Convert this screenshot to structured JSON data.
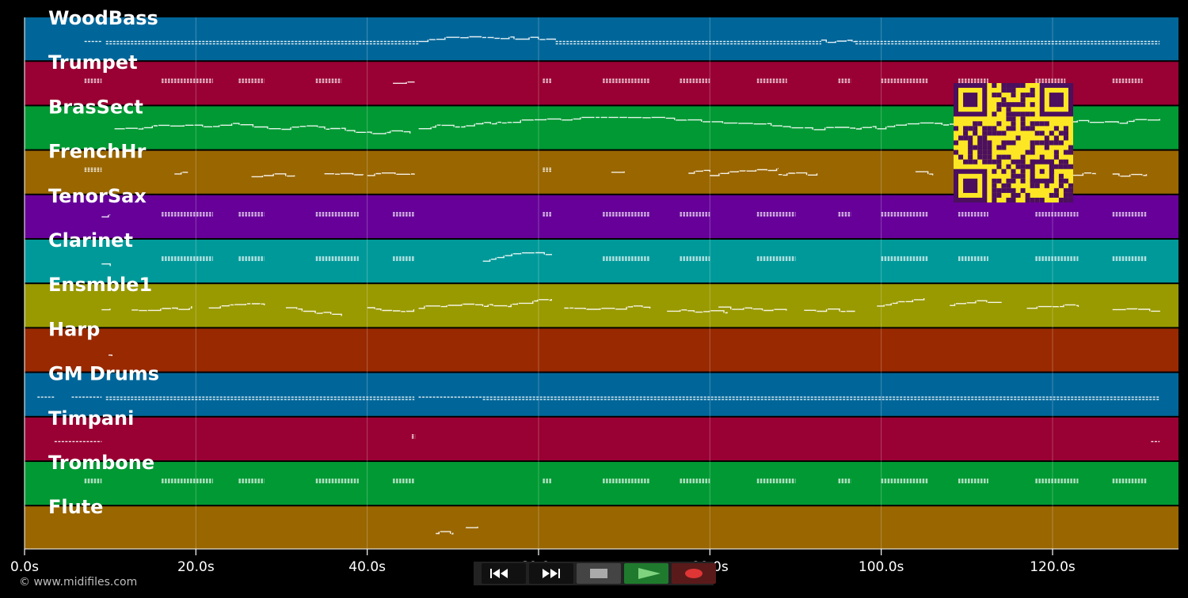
{
  "tracks": [
    {
      "name": "WoodBass",
      "color": "#006699",
      "notes": [
        [
          7,
          9,
          "m"
        ],
        [
          9.5,
          46,
          "d"
        ],
        [
          46,
          62,
          "w"
        ],
        [
          62,
          93,
          "d"
        ],
        [
          93,
          97,
          "w"
        ],
        [
          97,
          132.5,
          "d"
        ]
      ]
    },
    {
      "name": "Trumpet",
      "color": "#990033",
      "notes": [
        [
          7,
          9,
          "c"
        ],
        [
          16,
          22,
          "c"
        ],
        [
          25,
          28,
          "c"
        ],
        [
          34,
          37,
          "c"
        ],
        [
          43,
          45.5,
          "w"
        ],
        [
          60.5,
          61.5,
          "c"
        ],
        [
          67.5,
          73,
          "c"
        ],
        [
          76.5,
          80,
          "c"
        ],
        [
          85.5,
          89,
          "c"
        ],
        [
          95,
          96.5,
          "c"
        ],
        [
          100,
          105.5,
          "c"
        ],
        [
          109,
          112.5,
          "c"
        ],
        [
          118,
          121.5,
          "c"
        ],
        [
          127,
          130.5,
          "c"
        ]
      ]
    },
    {
      "name": "BrasSect",
      "color": "#009933",
      "notes": [
        [
          10.5,
          45,
          "w"
        ],
        [
          46,
          132.5,
          "w"
        ]
      ]
    },
    {
      "name": "FrenchHr",
      "color": "#996600",
      "notes": [
        [
          7,
          9,
          "c"
        ],
        [
          17.5,
          19,
          "w"
        ],
        [
          26.5,
          31.5,
          "w"
        ],
        [
          35,
          39.5,
          "w"
        ],
        [
          40,
          45.5,
          "w"
        ],
        [
          60.5,
          61.5,
          "c"
        ],
        [
          68.5,
          70,
          "w"
        ],
        [
          77.5,
          80,
          "w"
        ],
        [
          80,
          88,
          "w"
        ],
        [
          88,
          92.5,
          "w"
        ],
        [
          104,
          106,
          "w"
        ],
        [
          122,
          125,
          "w"
        ],
        [
          127,
          131,
          "w"
        ]
      ]
    },
    {
      "name": "TenorSax",
      "color": "#660099",
      "notes": [
        [
          9,
          10,
          "w"
        ],
        [
          16,
          22,
          "c"
        ],
        [
          25,
          28,
          "c"
        ],
        [
          34,
          39,
          "c"
        ],
        [
          43,
          45.5,
          "c"
        ],
        [
          60.5,
          61.5,
          "c"
        ],
        [
          67.5,
          73,
          "c"
        ],
        [
          76.5,
          80,
          "c"
        ],
        [
          85.5,
          90,
          "c"
        ],
        [
          95,
          96.5,
          "c"
        ],
        [
          100,
          105.5,
          "c"
        ],
        [
          109,
          112.5,
          "c"
        ],
        [
          118,
          123,
          "c"
        ],
        [
          127,
          131,
          "c"
        ]
      ]
    },
    {
      "name": "Clarinet",
      "color": "#009999",
      "notes": [
        [
          9,
          10,
          "w"
        ],
        [
          16,
          22,
          "c"
        ],
        [
          25,
          28,
          "c"
        ],
        [
          34,
          39,
          "c"
        ],
        [
          43,
          45.5,
          "c"
        ],
        [
          53.5,
          61.5,
          "w"
        ],
        [
          67.5,
          73,
          "c"
        ],
        [
          76.5,
          80,
          "c"
        ],
        [
          85.5,
          90,
          "c"
        ],
        [
          100,
          105.5,
          "c"
        ],
        [
          109,
          112.5,
          "c"
        ],
        [
          118,
          123,
          "c"
        ],
        [
          127,
          131,
          "c"
        ]
      ]
    },
    {
      "name": "Ensmble1",
      "color": "#999900",
      "notes": [
        [
          9,
          10,
          "w"
        ],
        [
          12.5,
          19.5,
          "w"
        ],
        [
          21.5,
          28,
          "w"
        ],
        [
          30.5,
          37,
          "w"
        ],
        [
          40,
          45.5,
          "w"
        ],
        [
          46,
          61.5,
          "w"
        ],
        [
          63,
          73,
          "w"
        ],
        [
          75,
          82,
          "w"
        ],
        [
          81,
          89,
          "w"
        ],
        [
          91,
          97,
          "w"
        ],
        [
          99.5,
          105,
          "w"
        ],
        [
          108,
          114,
          "w"
        ],
        [
          117,
          123,
          "w"
        ],
        [
          127,
          132.5,
          "w"
        ]
      ]
    },
    {
      "name": "Harp",
      "color": "#992900",
      "notes": [
        [
          9.8,
          10.2,
          "w"
        ]
      ]
    },
    {
      "name": "GM Drums",
      "color": "#006699",
      "notes": [
        [
          1.5,
          3.5,
          "m"
        ],
        [
          5.5,
          9,
          "m"
        ],
        [
          9.5,
          45.5,
          "d"
        ],
        [
          46,
          53.5,
          "m"
        ],
        [
          53.5,
          132.5,
          "d"
        ]
      ]
    },
    {
      "name": "Timpani",
      "color": "#990033",
      "notes": [
        [
          3.5,
          9,
          "m"
        ],
        [
          45.2,
          45.6,
          "c"
        ],
        [
          131.5,
          132.5,
          "m"
        ]
      ]
    },
    {
      "name": "Trombone",
      "color": "#009933",
      "notes": [
        [
          7,
          9,
          "c"
        ],
        [
          16,
          22,
          "c"
        ],
        [
          25,
          28,
          "c"
        ],
        [
          34,
          39,
          "c"
        ],
        [
          43,
          45.5,
          "c"
        ],
        [
          60.5,
          61.5,
          "c"
        ],
        [
          67.5,
          73,
          "c"
        ],
        [
          76.5,
          80,
          "c"
        ],
        [
          85.5,
          90,
          "c"
        ],
        [
          95,
          96.5,
          "c"
        ],
        [
          100,
          105.5,
          "c"
        ],
        [
          109,
          112.5,
          "c"
        ],
        [
          118,
          123,
          "c"
        ],
        [
          127,
          131,
          "c"
        ]
      ]
    },
    {
      "name": "Flute",
      "color": "#996600",
      "notes": [
        [
          48,
          50,
          "w"
        ],
        [
          51.5,
          53,
          "w"
        ]
      ]
    }
  ],
  "timeline": {
    "ticks": [
      {
        "t": 0,
        "label": "0.0s"
      },
      {
        "t": 20,
        "label": "20.0s"
      },
      {
        "t": 40,
        "label": "40.0s"
      },
      {
        "t": 60,
        "label": "60.0s"
      },
      {
        "t": 80,
        "label": "80.0s"
      },
      {
        "t": 100,
        "label": "100.0s"
      },
      {
        "t": 120,
        "label": "120.0s"
      }
    ],
    "range": [
      0,
      134.7
    ]
  },
  "copyright": "© www.midifiles.com",
  "transport": {
    "buttons": [
      {
        "name": "rewind-button",
        "icon": "rewind-icon",
        "bg": "#111111"
      },
      {
        "name": "fast-forward-button",
        "icon": "fast-forward-icon",
        "bg": "#111111"
      },
      {
        "name": "stop-button",
        "icon": "stop-icon",
        "bg": "#444444"
      },
      {
        "name": "play-button",
        "icon": "play-icon",
        "bg": "#1f7a2e"
      },
      {
        "name": "record-button",
        "icon": "record-icon",
        "bg": "#5a1a1a"
      }
    ]
  },
  "qr_code": {
    "fg": "#4b0f5e",
    "bg": "#fde725",
    "icon": "qr-code-icon"
  }
}
